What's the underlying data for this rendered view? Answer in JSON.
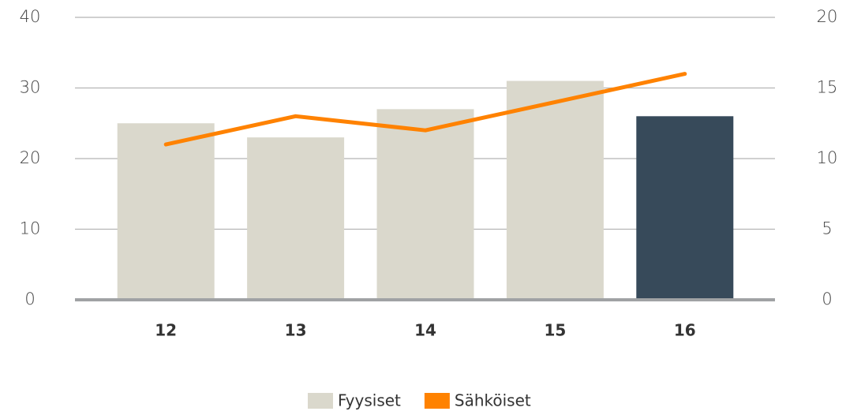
{
  "chart_data": {
    "type": "bar_line",
    "categories": [
      "12",
      "13",
      "14",
      "15",
      "16"
    ],
    "series": [
      {
        "name": "Fyysiset",
        "color": "#dad8cc",
        "colors": [
          "#dad8cc",
          "#dad8cc",
          "#dad8cc",
          "#dad8cc",
          "#374a5a"
        ],
        "values": [
          25,
          23,
          27,
          31,
          26
        ]
      },
      {
        "name": "Sähköiset",
        "color": "#ff8200",
        "axis": "y2",
        "values": [
          11,
          13,
          12,
          14,
          16
        ]
      }
    ],
    "ylim": [
      0,
      40
    ],
    "yticks": [
      0,
      10,
      20,
      30,
      40
    ],
    "y2lim": [
      0,
      20
    ],
    "y2ticks": [
      0,
      5,
      10,
      15,
      20
    ],
    "grid": true,
    "legend": "bottom"
  }
}
